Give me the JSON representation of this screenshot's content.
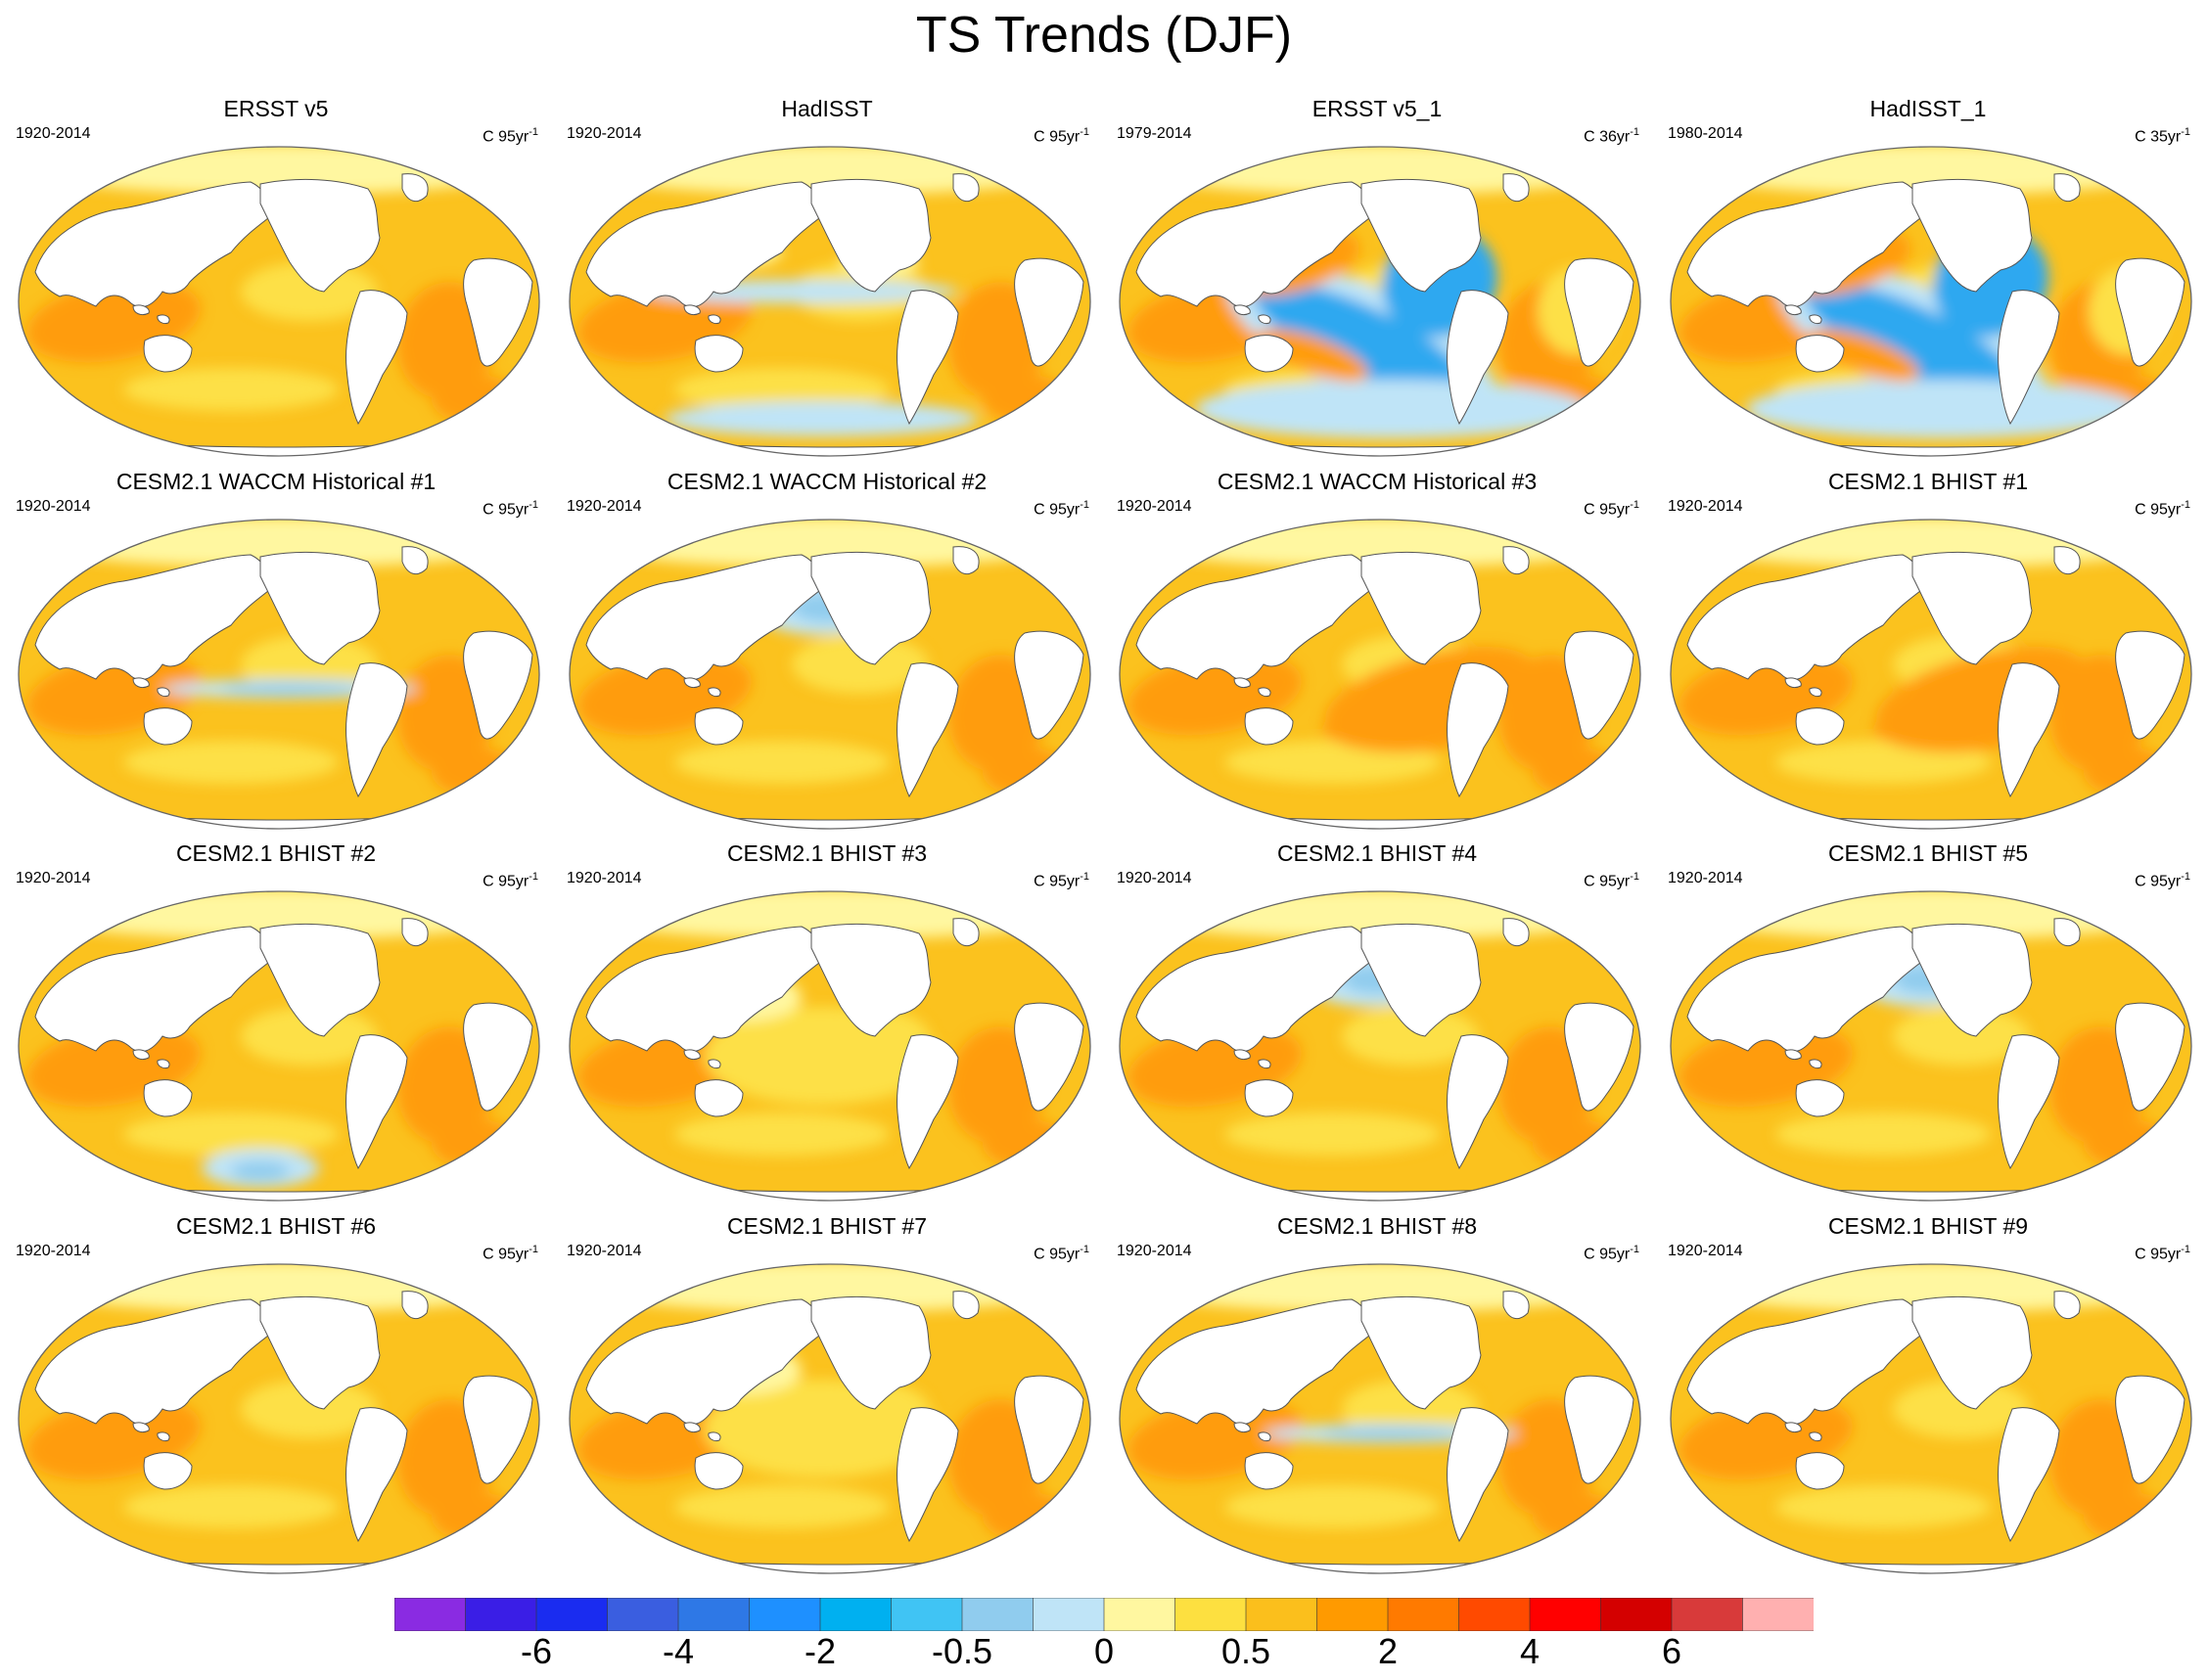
{
  "title": "TS Trends (DJF)",
  "chart_data": {
    "type": "heatmap",
    "title": "TS Trends (DJF)",
    "variable": "TS",
    "season": "DJF",
    "projection": "global map",
    "panels": [
      {
        "title": "ERSST v5",
        "period": "1920-2014",
        "units": "C 95yr",
        "units_exp": "-1",
        "pattern": "warm_uniform"
      },
      {
        "title": "HadISST",
        "period": "1920-2014",
        "units": "C 95yr",
        "units_exp": "-1",
        "pattern": "warm_patchy_cool_eq"
      },
      {
        "title": "ERSST v5_1",
        "period": "1979-2014",
        "units": "C 36yr",
        "units_exp": "-1",
        "pattern": "pdo_negative"
      },
      {
        "title": "HadISST_1",
        "period": "1980-2014",
        "units": "C 35yr",
        "units_exp": "-1",
        "pattern": "pdo_negative"
      },
      {
        "title": "CESM2.1 WACCM Historical #1",
        "period": "1920-2014",
        "units": "C 95yr",
        "units_exp": "-1",
        "pattern": "warm_cool_eq"
      },
      {
        "title": "CESM2.1 WACCM Historical #2",
        "period": "1920-2014",
        "units": "C 95yr",
        "units_exp": "-1",
        "pattern": "warm_cool_np"
      },
      {
        "title": "CESM2.1 WACCM Historical #3",
        "period": "1920-2014",
        "units": "C 95yr",
        "units_exp": "-1",
        "pattern": "warm_strong"
      },
      {
        "title": "CESM2.1 BHIST #1",
        "period": "1920-2014",
        "units": "C 95yr",
        "units_exp": "-1",
        "pattern": "warm_strong"
      },
      {
        "title": "CESM2.1 BHIST #2",
        "period": "1920-2014",
        "units": "C 95yr",
        "units_exp": "-1",
        "pattern": "warm_cool_so"
      },
      {
        "title": "CESM2.1 BHIST #3",
        "period": "1920-2014",
        "units": "C 95yr",
        "units_exp": "-1",
        "pattern": "warm_light"
      },
      {
        "title": "CESM2.1 BHIST #4",
        "period": "1920-2014",
        "units": "C 95yr",
        "units_exp": "-1",
        "pattern": "warm_cool_np"
      },
      {
        "title": "CESM2.1 BHIST #5",
        "period": "1920-2014",
        "units": "C 95yr",
        "units_exp": "-1",
        "pattern": "warm_cool_np"
      },
      {
        "title": "CESM2.1 BHIST #6",
        "period": "1920-2014",
        "units": "C 95yr",
        "units_exp": "-1",
        "pattern": "warm_uniform"
      },
      {
        "title": "CESM2.1 BHIST #7",
        "period": "1920-2014",
        "units": "C 95yr",
        "units_exp": "-1",
        "pattern": "warm_light"
      },
      {
        "title": "CESM2.1 BHIST #8",
        "period": "1920-2014",
        "units": "C 95yr",
        "units_exp": "-1",
        "pattern": "warm_cool_eq"
      },
      {
        "title": "CESM2.1 BHIST #9",
        "period": "1920-2014",
        "units": "C 95yr",
        "units_exp": "-1",
        "pattern": "warm_uniform"
      }
    ],
    "colorbar": {
      "labels": [
        "-6",
        "-4",
        "-2",
        "-0.5",
        "0",
        "0.5",
        "2",
        "4",
        "6"
      ],
      "colors": [
        "#8a2be2",
        "#3a1ee6",
        "#1a2cf0",
        "#3a5ee0",
        "#2e78e6",
        "#1e90ff",
        "#00b0f0",
        "#40c4f4",
        "#90ccee",
        "#bfe4f7",
        "#fff7a0",
        "#fde040",
        "#fbbf1c",
        "#ff9a00",
        "#ff7a00",
        "#ff4a00",
        "#ff0000",
        "#d40000",
        "#d83a3a",
        "#ffb0b0"
      ]
    }
  },
  "colors": {
    "land": "#ffffff",
    "coast": "#555555",
    "base_warm": "#fbc21e",
    "light_warm": "#fde047",
    "strong_warm": "#ff9c10",
    "pale": "#fff7a0",
    "cool_light": "#bfe4f7",
    "cool_mid": "#90ccee",
    "cool_strong": "#2ea8f0",
    "cool_deep": "#1e6fe6",
    "hot": "#ff4a00"
  }
}
